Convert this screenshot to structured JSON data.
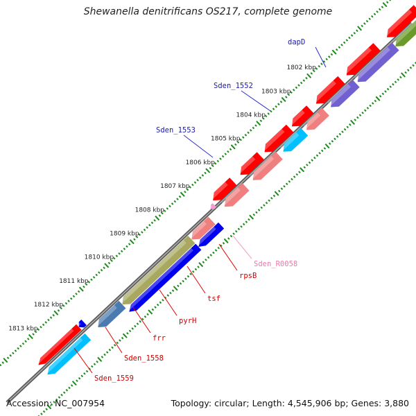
{
  "title": "Shewanella denitrificans OS217, complete genome",
  "footer": {
    "accession": "Accession: NC_007954",
    "summary": "Topology: circular; Length: 4,545,906 bp; Genes: 3,880"
  },
  "colors": {
    "backbone": "#808080",
    "tick": "#1a8a1a",
    "label_dark_blue": "#1a1aa8",
    "label_red": "#cc0000",
    "label_pink": "#e87aa8",
    "cds_red": "#ff0000",
    "cds_blue": "#0000ee",
    "cds_pink": "#f08080",
    "cds_olive": "#a8a860",
    "cds_steel": "#4a7ab0",
    "cds_purple": "#7060d0",
    "cds_cyan": "#00c0ff",
    "cds_green": "#6a9a2a",
    "rna_pink": "#f0a0d0"
  },
  "ticks": [
    {
      "label": "1802 kbp",
      "kbp": 1802
    },
    {
      "label": "1803 kbp",
      "kbp": 1803
    },
    {
      "label": "1804 kbp",
      "kbp": 1804
    },
    {
      "label": "1805 kbp",
      "kbp": 1805
    },
    {
      "label": "1806 kbp",
      "kbp": 1806
    },
    {
      "label": "1807 kbp",
      "kbp": 1807
    },
    {
      "label": "1808 kbp",
      "kbp": 1808
    },
    {
      "label": "1809 kbp",
      "kbp": 1809
    },
    {
      "label": "1810 kbp",
      "kbp": 1810
    },
    {
      "label": "1811 kbp",
      "kbp": 1811
    },
    {
      "label": "1812 kbp",
      "kbp": 1812
    },
    {
      "label": "1813 kbp",
      "kbp": 1813
    }
  ],
  "gene_labels": [
    {
      "name": "dapD",
      "color": "label_dark_blue"
    },
    {
      "name": "Sden_1552",
      "color": "label_dark_blue"
    },
    {
      "name": "Sden_1553",
      "color": "label_dark_blue"
    },
    {
      "name": "Sden_R0058",
      "color": "label_pink"
    },
    {
      "name": "rpsB",
      "color": "label_red"
    },
    {
      "name": "tsf",
      "color": "label_red"
    },
    {
      "name": "pyrH",
      "color": "label_red"
    },
    {
      "name": "frr",
      "color": "label_red"
    },
    {
      "name": "Sden_1558",
      "color": "label_red"
    },
    {
      "name": "Sden_1559",
      "color": "label_red"
    }
  ]
}
